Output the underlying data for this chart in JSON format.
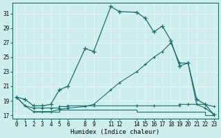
{
  "xlabel": "Humidex (Indice chaleur)",
  "bg_color": "#ceeeed",
  "grid_color": "#e8f8f8",
  "line_color": "#1a6b6b",
  "xlim": [
    -0.5,
    23.5
  ],
  "ylim": [
    16.5,
    32.5
  ],
  "xticks": [
    0,
    1,
    2,
    3,
    4,
    5,
    6,
    8,
    9,
    11,
    12,
    14,
    15,
    16,
    17,
    18,
    19,
    20,
    21,
    22,
    23
  ],
  "yticks": [
    17,
    19,
    21,
    23,
    25,
    27,
    29,
    31
  ],
  "series1_x": [
    0,
    1,
    2,
    3,
    4,
    5,
    6,
    8,
    9,
    11,
    12,
    14,
    15,
    16,
    17,
    18,
    19,
    20,
    21,
    22,
    23
  ],
  "series1_y": [
    19.5,
    19.2,
    18.3,
    18.3,
    18.5,
    20.5,
    21.0,
    26.2,
    25.8,
    32.0,
    31.3,
    31.2,
    30.4,
    28.5,
    29.3,
    27.3,
    23.8,
    24.2,
    19.2,
    18.5,
    17.1
  ],
  "series2_x": [
    0,
    1,
    2,
    3,
    4,
    5,
    5,
    6,
    6,
    9,
    9,
    14,
    14,
    16,
    16,
    19,
    19,
    20,
    20,
    22,
    22,
    23
  ],
  "series2_y": [
    19.5,
    18.3,
    18.0,
    18.0,
    18.0,
    18.0,
    18.2,
    18.2,
    18.3,
    18.3,
    18.3,
    18.3,
    18.3,
    18.3,
    18.3,
    18.3,
    18.5,
    18.5,
    18.5,
    18.5,
    18.5,
    18.2
  ],
  "series3_x": [
    0,
    1,
    2,
    3,
    4,
    5,
    6,
    8,
    9,
    11,
    12,
    14,
    15,
    16,
    17,
    18,
    19,
    20,
    21,
    22,
    23
  ],
  "series3_y": [
    19.5,
    18.3,
    17.5,
    17.5,
    17.5,
    17.8,
    18.0,
    18.2,
    18.5,
    20.5,
    21.5,
    23.0,
    24.0,
    25.0,
    25.8,
    27.0,
    24.2,
    24.2,
    18.5,
    18.0,
    17.1
  ],
  "series4_x": [
    2,
    3,
    4,
    5,
    5,
    6,
    6,
    9,
    9,
    14,
    14,
    22,
    22,
    23
  ],
  "series4_y": [
    17.5,
    17.5,
    17.5,
    17.5,
    17.8,
    17.8,
    17.8,
    17.8,
    17.8,
    17.8,
    17.5,
    17.5,
    17.0,
    17.0
  ]
}
